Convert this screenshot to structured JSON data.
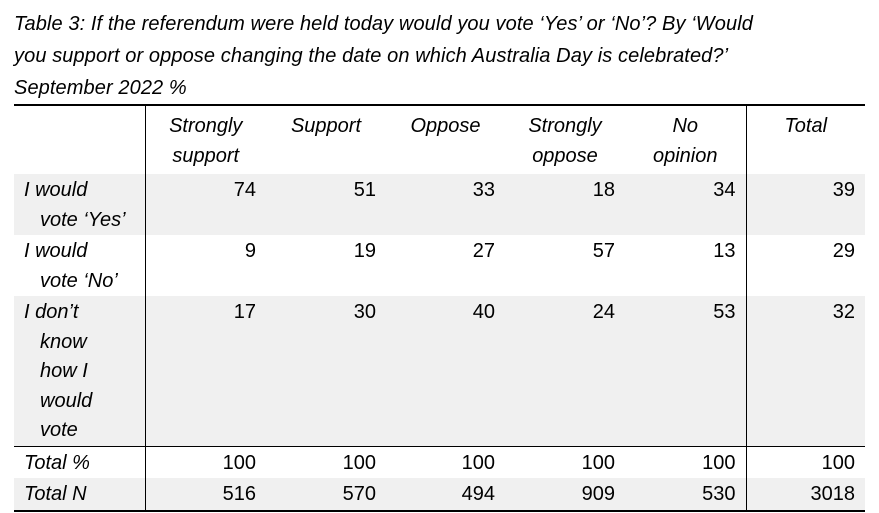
{
  "caption": {
    "line1": "Table 3: If the referendum were held today would you vote ‘Yes’ or ‘No’? By ‘Would",
    "line2": "you support or oppose changing the date on which Australia Day is celebrated?’",
    "line3": "September 2022 %"
  },
  "table": {
    "columns": [
      [
        "Strongly",
        "support"
      ],
      [
        "Support"
      ],
      [
        "Oppose"
      ],
      [
        "Strongly",
        "oppose"
      ],
      [
        "No",
        "opinion"
      ],
      [
        "Total"
      ]
    ],
    "rows": [
      {
        "label": [
          "I would",
          "vote ‘Yes’"
        ],
        "values": [
          "74",
          "51",
          "33",
          "18",
          "34",
          "39"
        ]
      },
      {
        "label": [
          "I would",
          "vote ‘No’"
        ],
        "values": [
          "9",
          "19",
          "27",
          "57",
          "13",
          "29"
        ]
      },
      {
        "label": [
          "I don’t",
          "know",
          "how I",
          "would",
          "vote"
        ],
        "values": [
          "17",
          "30",
          "40",
          "24",
          "53",
          "32"
        ]
      }
    ],
    "totals": [
      {
        "label": "Total %",
        "values": [
          "100",
          "100",
          "100",
          "100",
          "100",
          "100"
        ]
      },
      {
        "label": "Total N",
        "values": [
          "516",
          "570",
          "494",
          "909",
          "530",
          "3018"
        ]
      }
    ]
  }
}
